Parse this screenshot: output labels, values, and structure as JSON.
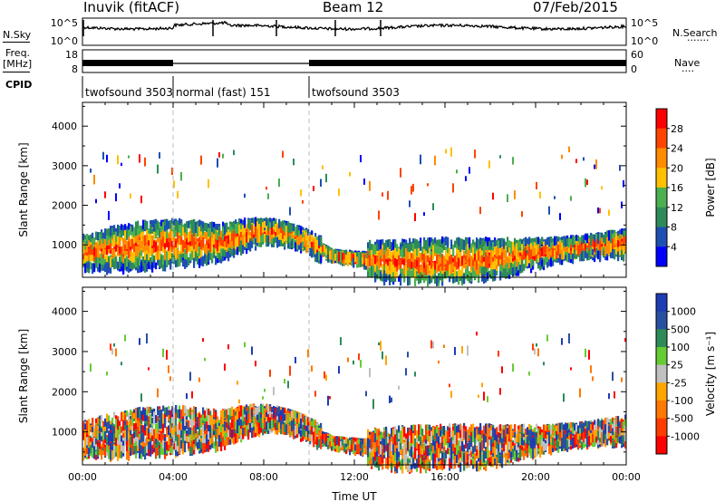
{
  "header": {
    "station": "Inuvik (fitACF)",
    "beam": "Beam 12",
    "date": "07/Feb/2015"
  },
  "side_labels": {
    "nsky": "N.Sky",
    "freq": "Freq.",
    "freq_unit": "[MHz]",
    "cpid": "CPID",
    "nsearch": "N.Search",
    "nsearch_dots": "·······",
    "nave": "Nave",
    "nave_dots": "····"
  },
  "noise_panel": {
    "left_ticks": [
      "10^5",
      "10^0"
    ],
    "right_ticks": [
      "10^5",
      "10^0"
    ]
  },
  "freq_panel": {
    "left_ticks": [
      "18",
      "8"
    ],
    "right_ticks": [
      "60",
      "0"
    ]
  },
  "cpid_segments": [
    {
      "label": "twofsound 3503",
      "start_h": 0,
      "end_h": 4
    },
    {
      "label": "normal (fast) 151",
      "start_h": 4,
      "end_h": 10
    },
    {
      "label": "twofsound 3503",
      "start_h": 10,
      "end_h": 24
    }
  ],
  "chart_data": [
    {
      "type": "heatmap",
      "title": "",
      "xlabel": "",
      "ylabel": "Slant Range [km]",
      "xlim": [
        0,
        24
      ],
      "ylim": [
        180,
        4600
      ],
      "yticks": [
        "1000",
        "2000",
        "3000",
        "4000"
      ],
      "colorbar": {
        "label": "Power [dB]",
        "ticks": [
          "28",
          "24",
          "20",
          "16",
          "12",
          "8",
          "4"
        ],
        "colors": [
          "#ff0000",
          "#ff4400",
          "#ff8c00",
          "#ffc000",
          "#4caf50",
          "#2e8b57",
          "#1e50b4",
          "#0000ff"
        ]
      }
    },
    {
      "type": "heatmap",
      "title": "",
      "xlabel": "Time UT",
      "ylabel": "Slant Range [km]",
      "xlim": [
        0,
        24
      ],
      "ylim": [
        180,
        4600
      ],
      "yticks": [
        "1000",
        "2000",
        "3000",
        "4000"
      ],
      "xticks": [
        "00:00",
        "04:00",
        "08:00",
        "12:00",
        "16:00",
        "20:00",
        "00:00"
      ],
      "colorbar": {
        "label": "Velocity [m s⁻¹]",
        "ticks": [
          "1000",
          "500",
          "100",
          "25",
          "-25",
          "-100",
          "-500",
          "-1000"
        ],
        "colors": [
          "#1e3cb4",
          "#2850a0",
          "#2e8b57",
          "#66cc33",
          "#c0c0c0",
          "#ffa500",
          "#ff7800",
          "#ff3c00",
          "#ff0000"
        ]
      }
    }
  ]
}
